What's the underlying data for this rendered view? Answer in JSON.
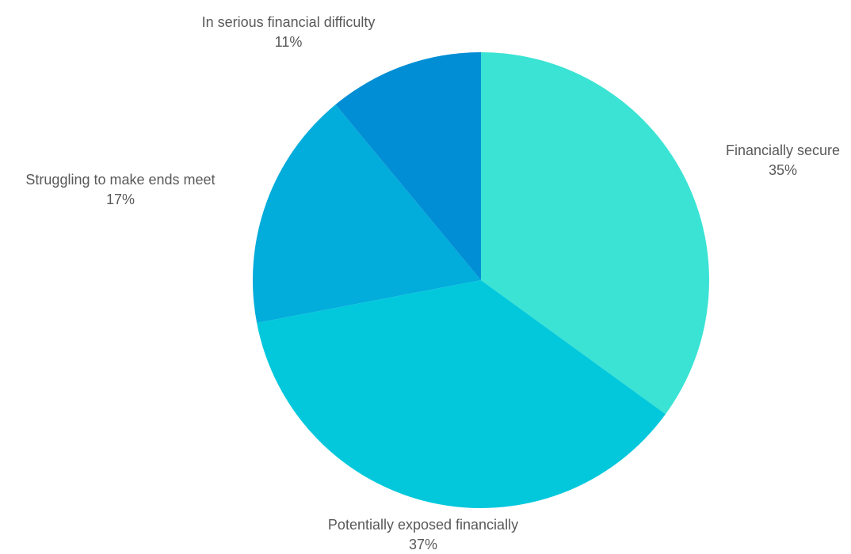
{
  "chart_data": {
    "type": "pie",
    "title": "",
    "slices": [
      {
        "label": "Financially secure",
        "value": 35,
        "value_label": "35%",
        "color": "#3ae3d4"
      },
      {
        "label": "Potentially exposed financially",
        "value": 37,
        "value_label": "37%",
        "color": "#03c8dc"
      },
      {
        "label": "Struggling to make ends meet",
        "value": 17,
        "value_label": "17%",
        "color": "#02acdb"
      },
      {
        "label": "In serious financial difficulty",
        "value": 11,
        "value_label": "11%",
        "color": "#028ed5"
      }
    ],
    "start": "12 o'clock",
    "direction": "clockwise",
    "legend": "none"
  }
}
